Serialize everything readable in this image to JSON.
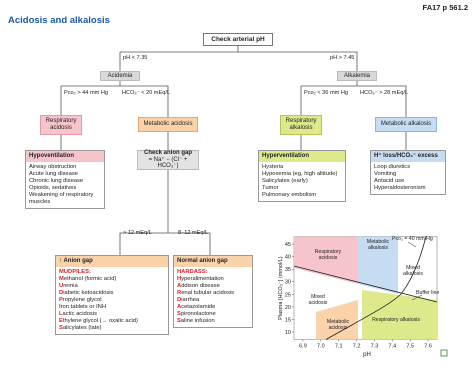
{
  "header": {
    "title": "Acidosis and alkalosis",
    "ref": "FA17 p 561.2"
  },
  "flow": {
    "start": "Check arterial pH",
    "acid_branch": "pH < 7.35",
    "alk_branch": "pH > 7.45",
    "acidemia": "Acidemia",
    "alkalemia": "Alkalemia",
    "resp_acid_cond": "Pco₂ > 44 mm Hg",
    "met_acid_cond": "HCO₃⁻ < 20 mEq/L",
    "resp_alk_cond": "Pco₂ < 36 mm Hg",
    "met_alk_cond": "HCO₃⁻ > 28 mEq/L",
    "resp_acidosis": "Respiratory acidosis",
    "met_acidosis": "Metabolic acidosis",
    "resp_alkalosis": "Respiratory alkalosis",
    "met_alkalosis": "Metabolic alkalosis",
    "anion_gap_check": {
      "title": "Check anion gap",
      "formula": "= Na⁺ − (Cl⁻ + HCO₃⁻)"
    },
    "high_gap_cond": "> 12 mEq/L",
    "normal_gap_cond": "8–12 mEq/L"
  },
  "causes": {
    "hypoventilation": {
      "title": "Hypoventilation",
      "items": [
        "Airway obstruction",
        "Acute lung disease",
        "Chronic lung disease",
        "Opioids, sedatives",
        "Weakening of respiratory muscles"
      ]
    },
    "hyperventilation": {
      "title": "Hyperventilation",
      "items": [
        "Hysteria",
        "Hypoxemia (eg, high altitude)",
        "Salicylates (early)",
        "Tumor",
        "Pulmonary embolism"
      ]
    },
    "h_loss": {
      "title": "H⁺ loss/HCO₃⁻ excess",
      "items": [
        "Loop diuretics",
        "Vomiting",
        "Antacid use",
        "Hyperaldosteronism"
      ]
    },
    "anion_gap": {
      "title": "↑ Anion gap",
      "mnemonic": "MUDPILES:",
      "items": [
        "Methanol (formic acid)",
        "Uremia",
        "Diabetic ketoacidosis",
        "Propylene glycol",
        "Iron tablets or INH",
        "Lactic acidosis",
        "Ethylene glycol (→ oxalic acid)",
        "Salicylates (late)"
      ]
    },
    "normal_gap": {
      "title": "Normal anion gap",
      "mnemonic": "HARDASS:",
      "items": [
        "Hyperalimentation",
        "Addison disease",
        "Renal tubular acidosis",
        "Diarrhea",
        "Acetazolamide",
        "Spironolactone",
        "Saline infusion"
      ]
    }
  },
  "chart_data": {
    "type": "region-diagram",
    "xlabel": "pH",
    "ylabel": "Plasma [HCO₃⁻] (mmol/L)",
    "xlim": [
      6.85,
      7.65
    ],
    "ylim": [
      7,
      48
    ],
    "xticks": [
      6.9,
      {
        "value": 7.0,
        "label": "7.0"
      },
      7.1,
      7.2,
      7.3,
      7.4,
      7.5,
      7.6
    ],
    "yticks": [
      10,
      15,
      20,
      25,
      30,
      35,
      40,
      45
    ],
    "regions": {
      "resp_acidosis": "Respiratory acidosis",
      "met_alkalosis": "Metabolic alkalosis",
      "mixed_alkalosis": "Mixed alkalosis",
      "mixed_acidosis": "Mixed acidosis",
      "met_acidosis": "Metabolic acidosis",
      "resp_alkalosis": "Respiratory alkalosis"
    },
    "isobar": "Pco₂ = 40 mm Hg",
    "buffer_line": "Buffer line"
  }
}
